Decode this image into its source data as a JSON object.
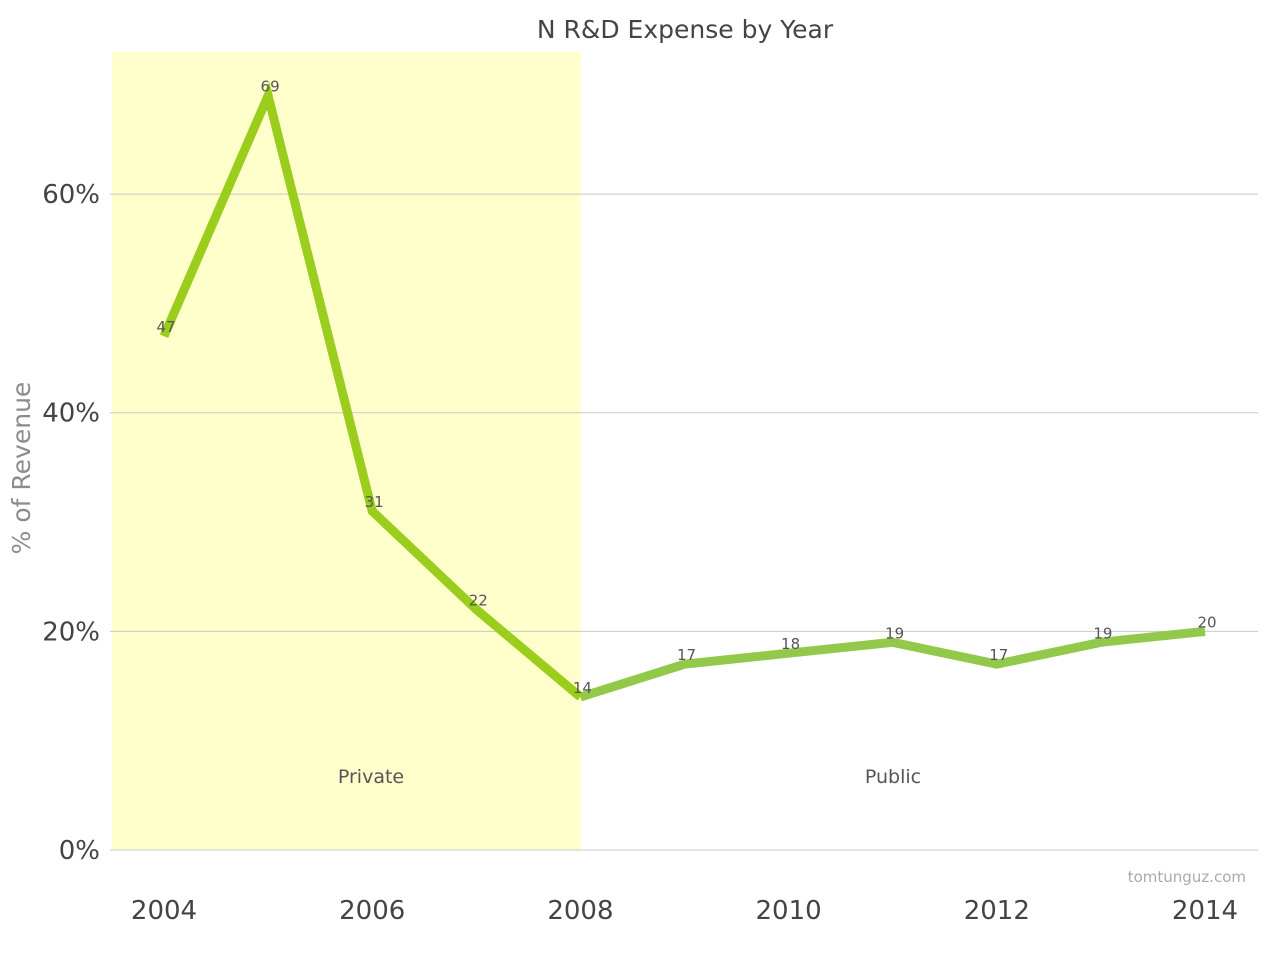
{
  "chart_data": {
    "type": "line",
    "title": "N R&D Expense by Year",
    "ylabel": "% of Revenue",
    "xlabel": "",
    "x": [
      2004,
      2005,
      2006,
      2007,
      2008,
      2009,
      2010,
      2011,
      2012,
      2013,
      2014
    ],
    "x_ticks": [
      "2004",
      "2006",
      "2008",
      "2010",
      "2012",
      "2014"
    ],
    "y_ticks": [
      "0%",
      "20%",
      "40%",
      "60%"
    ],
    "ylim": [
      0,
      73
    ],
    "grid": true,
    "series": [
      {
        "values": [
          47,
          69,
          31,
          22,
          14,
          17,
          18,
          19,
          17,
          19,
          20
        ],
        "labels": [
          "47",
          "69",
          "31",
          "22",
          "14",
          "17",
          "18",
          "19",
          "17",
          "19",
          "20"
        ]
      }
    ],
    "regions": [
      {
        "label": "Private",
        "start": 2003.5,
        "end": 2008,
        "color": "#ffffcc"
      },
      {
        "label": "Public",
        "start": 2008,
        "end": 2014.5,
        "color": "#ffffff"
      }
    ],
    "colors": {
      "private_line": "#9acd1c",
      "public_line": "#92c94a",
      "grid": "#c8c8c8"
    },
    "credit": "tomtunguz.com"
  }
}
